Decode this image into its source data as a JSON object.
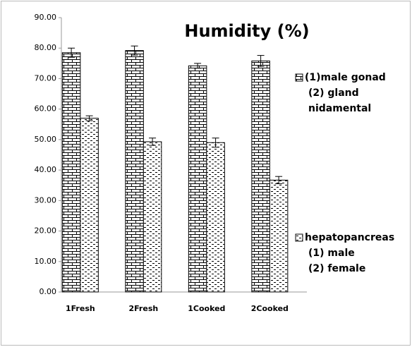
{
  "chart_data": {
    "type": "bar",
    "title": "Humidity (%)",
    "categories": [
      "1Fresh",
      "2Fresh",
      "1Cooked",
      "2Cooked"
    ],
    "series": [
      {
        "name": "(1)male gonad\n(2) gland\nnidamental",
        "color": "#000000",
        "pattern": "brick",
        "values": [
          78.5,
          79.2,
          74.2,
          75.8
        ],
        "errors": [
          1.5,
          1.5,
          0.8,
          1.8
        ]
      },
      {
        "name": "hepatopancreas\n(1)  male\n(2) female",
        "color": "#000000",
        "pattern": "dashes",
        "values": [
          57.0,
          49.3,
          49.0,
          36.7
        ],
        "errors": [
          0.8,
          1.2,
          1.5,
          1.2
        ]
      }
    ],
    "ylim": [
      0,
      90
    ],
    "yticks": [
      {
        "value": 0,
        "label": "0.00"
      },
      {
        "value": 10,
        "label": "10.00"
      },
      {
        "value": 20,
        "label": "20.00"
      },
      {
        "value": 30,
        "label": "30.00"
      },
      {
        "value": 40,
        "label": "40.00"
      },
      {
        "value": 50,
        "label": "50.00"
      },
      {
        "value": 60,
        "label": "60.00"
      },
      {
        "value": 70,
        "label": "70.00"
      },
      {
        "value": 80,
        "label": "80.00"
      },
      {
        "value": 90,
        "label": "90.00"
      }
    ],
    "grid": false
  }
}
